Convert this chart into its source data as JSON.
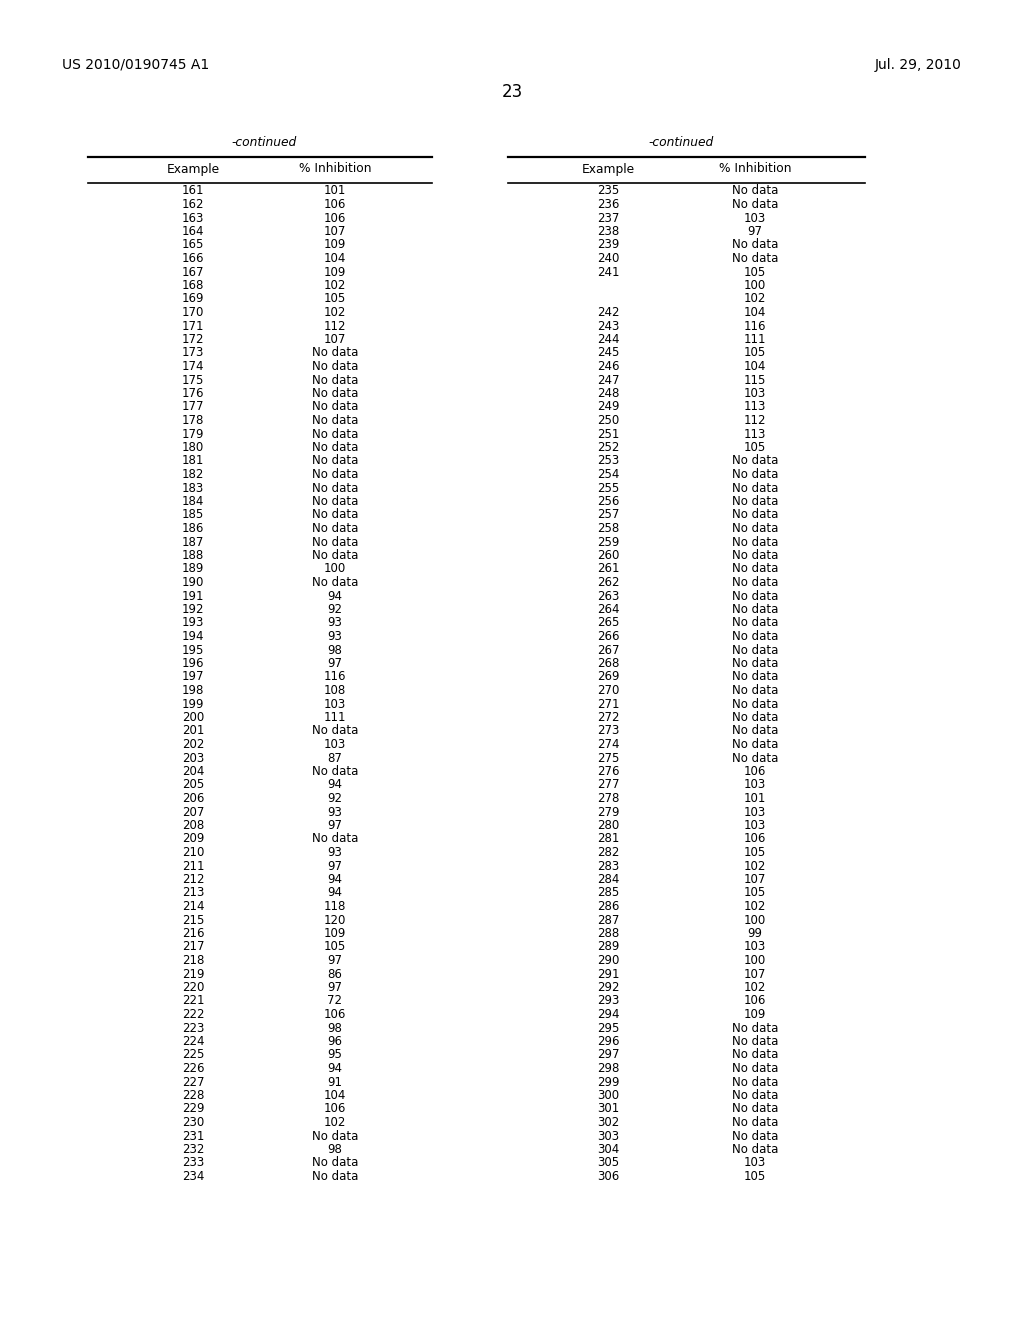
{
  "header_left": "US 2010/0190745 A1",
  "header_right": "Jul. 29, 2010",
  "page_number": "23",
  "left_table": {
    "continued_label": "-continued",
    "col1_header": "Example",
    "col2_header": "% Inhibition",
    "rows": [
      [
        "161",
        "101"
      ],
      [
        "162",
        "106"
      ],
      [
        "163",
        "106"
      ],
      [
        "164",
        "107"
      ],
      [
        "165",
        "109"
      ],
      [
        "166",
        "104"
      ],
      [
        "167",
        "109"
      ],
      [
        "168",
        "102"
      ],
      [
        "169",
        "105"
      ],
      [
        "170",
        "102"
      ],
      [
        "171",
        "112"
      ],
      [
        "172",
        "107"
      ],
      [
        "173",
        "No data"
      ],
      [
        "174",
        "No data"
      ],
      [
        "175",
        "No data"
      ],
      [
        "176",
        "No data"
      ],
      [
        "177",
        "No data"
      ],
      [
        "178",
        "No data"
      ],
      [
        "179",
        "No data"
      ],
      [
        "180",
        "No data"
      ],
      [
        "181",
        "No data"
      ],
      [
        "182",
        "No data"
      ],
      [
        "183",
        "No data"
      ],
      [
        "184",
        "No data"
      ],
      [
        "185",
        "No data"
      ],
      [
        "186",
        "No data"
      ],
      [
        "187",
        "No data"
      ],
      [
        "188",
        "No data"
      ],
      [
        "189",
        "100"
      ],
      [
        "190",
        "No data"
      ],
      [
        "191",
        "94"
      ],
      [
        "192",
        "92"
      ],
      [
        "193",
        "93"
      ],
      [
        "194",
        "93"
      ],
      [
        "195",
        "98"
      ],
      [
        "196",
        "97"
      ],
      [
        "197",
        "116"
      ],
      [
        "198",
        "108"
      ],
      [
        "199",
        "103"
      ],
      [
        "200",
        "111"
      ],
      [
        "201",
        "No data"
      ],
      [
        "202",
        "103"
      ],
      [
        "203",
        "87"
      ],
      [
        "204",
        "No data"
      ],
      [
        "205",
        "94"
      ],
      [
        "206",
        "92"
      ],
      [
        "207",
        "93"
      ],
      [
        "208",
        "97"
      ],
      [
        "209",
        "No data"
      ],
      [
        "210",
        "93"
      ],
      [
        "211",
        "97"
      ],
      [
        "212",
        "94"
      ],
      [
        "213",
        "94"
      ],
      [
        "214",
        "118"
      ],
      [
        "215",
        "120"
      ],
      [
        "216",
        "109"
      ],
      [
        "217",
        "105"
      ],
      [
        "218",
        "97"
      ],
      [
        "219",
        "86"
      ],
      [
        "220",
        "97"
      ],
      [
        "221",
        "72"
      ],
      [
        "222",
        "106"
      ],
      [
        "223",
        "98"
      ],
      [
        "224",
        "96"
      ],
      [
        "225",
        "95"
      ],
      [
        "226",
        "94"
      ],
      [
        "227",
        "91"
      ],
      [
        "228",
        "104"
      ],
      [
        "229",
        "106"
      ],
      [
        "230",
        "102"
      ],
      [
        "231",
        "No data"
      ],
      [
        "232",
        "98"
      ],
      [
        "233",
        "No data"
      ],
      [
        "234",
        "No data"
      ]
    ]
  },
  "right_table": {
    "continued_label": "-continued",
    "col1_header": "Example",
    "col2_header": "% Inhibition",
    "rows": [
      [
        "235",
        "No data"
      ],
      [
        "236",
        "No data"
      ],
      [
        "237",
        "103"
      ],
      [
        "238",
        "97"
      ],
      [
        "239",
        "No data"
      ],
      [
        "240",
        "No data"
      ],
      [
        "241",
        "105"
      ],
      [
        "",
        "100"
      ],
      [
        "",
        "102"
      ],
      [
        "242",
        "104"
      ],
      [
        "243",
        "116"
      ],
      [
        "244",
        "111"
      ],
      [
        "245",
        "105"
      ],
      [
        "246",
        "104"
      ],
      [
        "247",
        "115"
      ],
      [
        "248",
        "103"
      ],
      [
        "249",
        "113"
      ],
      [
        "250",
        "112"
      ],
      [
        "251",
        "113"
      ],
      [
        "252",
        "105"
      ],
      [
        "253",
        "No data"
      ],
      [
        "254",
        "No data"
      ],
      [
        "255",
        "No data"
      ],
      [
        "256",
        "No data"
      ],
      [
        "257",
        "No data"
      ],
      [
        "258",
        "No data"
      ],
      [
        "259",
        "No data"
      ],
      [
        "260",
        "No data"
      ],
      [
        "261",
        "No data"
      ],
      [
        "262",
        "No data"
      ],
      [
        "263",
        "No data"
      ],
      [
        "264",
        "No data"
      ],
      [
        "265",
        "No data"
      ],
      [
        "266",
        "No data"
      ],
      [
        "267",
        "No data"
      ],
      [
        "268",
        "No data"
      ],
      [
        "269",
        "No data"
      ],
      [
        "270",
        "No data"
      ],
      [
        "271",
        "No data"
      ],
      [
        "272",
        "No data"
      ],
      [
        "273",
        "No data"
      ],
      [
        "274",
        "No data"
      ],
      [
        "275",
        "No data"
      ],
      [
        "276",
        "106"
      ],
      [
        "277",
        "103"
      ],
      [
        "278",
        "101"
      ],
      [
        "279",
        "103"
      ],
      [
        "280",
        "103"
      ],
      [
        "281",
        "106"
      ],
      [
        "282",
        "105"
      ],
      [
        "283",
        "102"
      ],
      [
        "284",
        "107"
      ],
      [
        "285",
        "105"
      ],
      [
        "286",
        "102"
      ],
      [
        "287",
        "100"
      ],
      [
        "288",
        "99"
      ],
      [
        "289",
        "103"
      ],
      [
        "290",
        "100"
      ],
      [
        "291",
        "107"
      ],
      [
        "292",
        "102"
      ],
      [
        "293",
        "106"
      ],
      [
        "294",
        "109"
      ],
      [
        "295",
        "No data"
      ],
      [
        "296",
        "No data"
      ],
      [
        "297",
        "No data"
      ],
      [
        "298",
        "No data"
      ],
      [
        "299",
        "No data"
      ],
      [
        "300",
        "No data"
      ],
      [
        "301",
        "No data"
      ],
      [
        "302",
        "No data"
      ],
      [
        "303",
        "No data"
      ],
      [
        "304",
        "No data"
      ],
      [
        "305",
        "103"
      ],
      [
        "306",
        "105"
      ]
    ]
  }
}
